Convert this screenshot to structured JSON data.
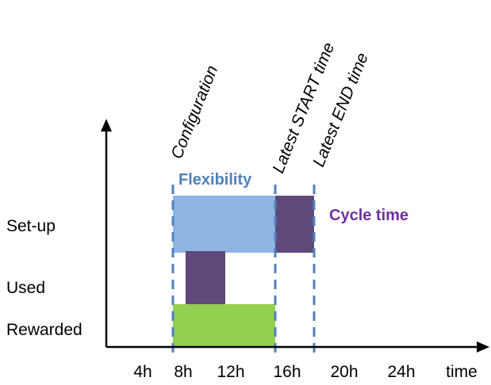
{
  "y_axis": {
    "rows": [
      "Set-up",
      "Used",
      "Rewarded"
    ]
  },
  "x_axis": {
    "ticks": [
      "4h",
      "8h",
      "12h",
      "16h",
      "20h",
      "24h"
    ],
    "label": "time"
  },
  "markers": [
    {
      "label": "Configuration",
      "time_h": 8
    },
    {
      "label": "Latest START time",
      "time_h": 15
    },
    {
      "label": "Latest END time",
      "time_h": 18
    }
  ],
  "bars": [
    {
      "row": "Set-up",
      "name": "flexibility",
      "start_h": 8,
      "end_h": 15,
      "color": "#8eb4e3"
    },
    {
      "row": "Set-up",
      "name": "cycle",
      "start_h": 15,
      "end_h": 18,
      "color": "#5f497a"
    },
    {
      "row": "Used",
      "name": "used",
      "start_h": 9,
      "end_h": 12,
      "color": "#5f497a"
    },
    {
      "row": "Rewarded",
      "name": "rewarded",
      "start_h": 8,
      "end_h": 15,
      "color": "#92d050"
    }
  ],
  "annotations": {
    "flexibility": {
      "text": "Flexibility",
      "color": "#4f81bd"
    },
    "cycle_time": {
      "text": "Cycle time",
      "color": "#7030a0"
    }
  },
  "colors": {
    "axis": "#000000",
    "dashed_line": "#4f81bd"
  }
}
